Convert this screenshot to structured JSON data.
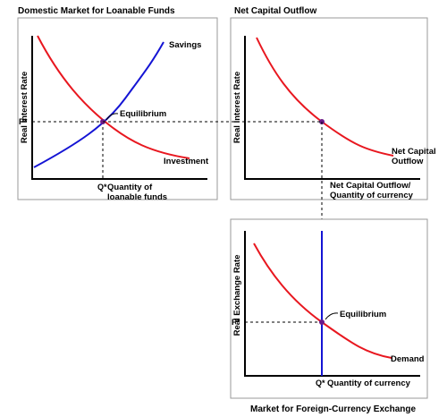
{
  "colors": {
    "demand_curve": "#e8171f",
    "supply_curve": "#1414d4",
    "equilibrium_point": "#6a1a8a",
    "axis": "#000000",
    "frame": "#9a9a9a"
  },
  "panel_loanable": {
    "title": "Domestic Market for Loanable Funds",
    "ylabel": "Real Interest Rate",
    "p_tick": "P*",
    "q_tick": "Q*",
    "xlabel_line1": "Quantity of",
    "xlabel_line2": "loanable funds",
    "savings_label": "Savings",
    "investment_label": "Investment",
    "equilibrium_label": "Equilibrium"
  },
  "panel_nco": {
    "title": "Net Capital Outflow",
    "ylabel": "Real Interest Rate",
    "curve_label_line1": "Net Capital",
    "curve_label_line2": "Outflow",
    "xlabel_line1": "Net Capital Outflow/",
    "xlabel_line2": "Quantity of currency"
  },
  "panel_exchange": {
    "title": "Market for Foreign-Currency Exchange",
    "ylabel": "Real Exchange Rate",
    "p_tick": "P*",
    "q_tick": "Q*",
    "xlabel": "Quantity of currency",
    "demand_label": "Demand",
    "equilibrium_label": "Equilibrium"
  }
}
